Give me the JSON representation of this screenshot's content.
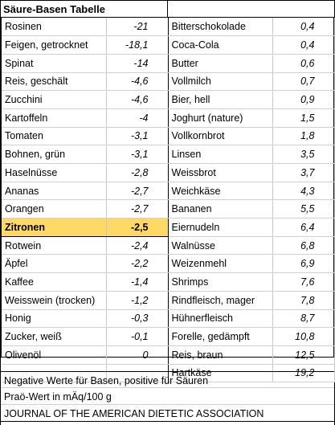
{
  "title": "Säure-Basen Tabelle",
  "left_rows": [
    {
      "name": "Rosinen",
      "value": "-21"
    },
    {
      "name": "Feigen, getrocknet",
      "value": "-18,1"
    },
    {
      "name": "Spinat",
      "value": "-14"
    },
    {
      "name": "Reis, geschält",
      "value": "-4,6"
    },
    {
      "name": "Zucchini",
      "value": "-4,6"
    },
    {
      "name": "Kartoffeln",
      "value": "-4"
    },
    {
      "name": "Tomaten",
      "value": "-3,1"
    },
    {
      "name": "Bohnen, grün",
      "value": "-3,1"
    },
    {
      "name": "Haselnüsse",
      "value": "-2,8"
    },
    {
      "name": "Ananas",
      "value": "-2,7"
    },
    {
      "name": "Orangen",
      "value": "-2,7"
    },
    {
      "name": "Zitronen",
      "value": "-2,5"
    },
    {
      "name": "Rotwein",
      "value": "-2,4"
    },
    {
      "name": "Äpfel",
      "value": "-2,2"
    },
    {
      "name": "Kaffee",
      "value": "-1,4"
    },
    {
      "name": "Weisswein (trocken)",
      "value": "-1,2"
    },
    {
      "name": "Honig",
      "value": "-0,3"
    },
    {
      "name": "Zucker, weiß",
      "value": "-0,1"
    },
    {
      "name": "Olivenöl",
      "value": "0"
    },
    {
      "name": "",
      "value": ""
    }
  ],
  "right_rows": [
    {
      "name": "Bitterschokolade",
      "value": "0,4"
    },
    {
      "name": "Coca-Cola",
      "value": "0,4"
    },
    {
      "name": "Butter",
      "value": "0,6"
    },
    {
      "name": "Vollmilch",
      "value": "0,7"
    },
    {
      "name": "Bier, hell",
      "value": "0,9"
    },
    {
      "name": "Joghurt (nature)",
      "value": "1,5"
    },
    {
      "name": "Vollkornbrot",
      "value": "1,8"
    },
    {
      "name": "Linsen",
      "value": "3,5"
    },
    {
      "name": "Weissbrot",
      "value": "3,7"
    },
    {
      "name": "Weichkäse",
      "value": "4,3"
    },
    {
      "name": "Bananen",
      "value": "5,5"
    },
    {
      "name": "Eiernudeln",
      "value": "6,4"
    },
    {
      "name": "Walnüsse",
      "value": "6,8"
    },
    {
      "name": "Weizenmehl",
      "value": "6,9"
    },
    {
      "name": "Shrimps",
      "value": "7,6"
    },
    {
      "name": "Rindfleisch, mager",
      "value": "7,8"
    },
    {
      "name": "Hühnerfleisch",
      "value": "8,7"
    },
    {
      "name": "Forelle, gedämpft",
      "value": "10,8"
    },
    {
      "name": "Reis, braun",
      "value": "12,5"
    },
    {
      "name": "Hartkäse",
      "value": "19,2"
    }
  ],
  "highlight_index": 11,
  "highlight_color": "#ffd966",
  "footnotes": {
    "line1": "Negative Werte für Basen, positive für Säuren",
    "line2": "Praö-Wert in mÄq/100 g",
    "line3": "JOURNAL OF THE AMERICAN DIETETIC ASSOCIATION"
  }
}
